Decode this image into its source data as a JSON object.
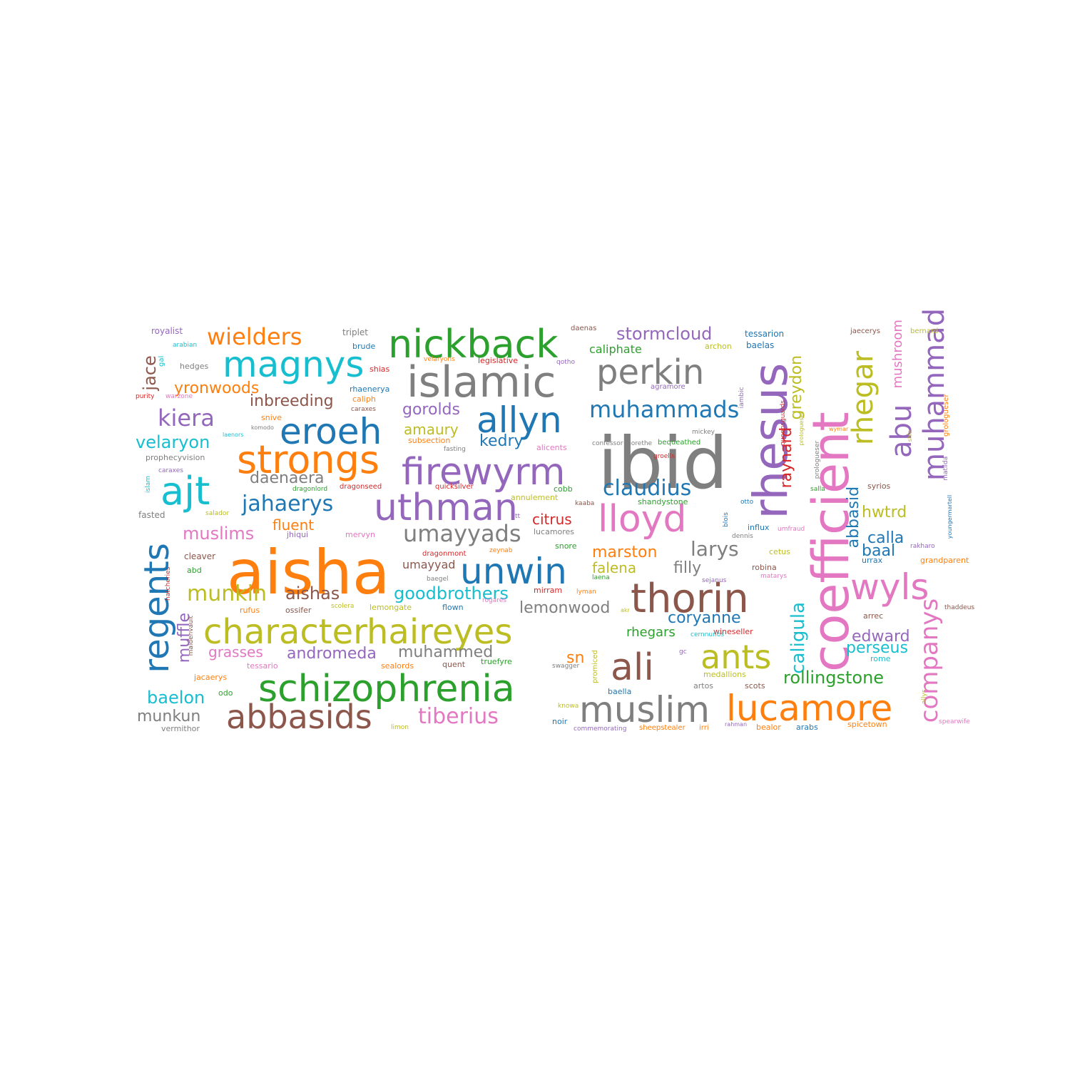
{
  "palette": {
    "blue": "#1f77b4",
    "orange": "#ff7f0e",
    "green": "#2ca02c",
    "red": "#d62728",
    "purple": "#9467bd",
    "brown": "#8c564b",
    "pink": "#e377c2",
    "gray": "#7f7f7f",
    "olive": "#bcbd22",
    "cyan": "#17becf"
  },
  "words": [
    {
      "text": "aisha",
      "color": "orange"
    },
    {
      "text": "ibid",
      "color": "gray"
    },
    {
      "text": "coefficient",
      "color": "pink"
    },
    {
      "text": "islamic",
      "color": "gray"
    },
    {
      "text": "characterhaireyes",
      "color": "olive"
    },
    {
      "text": "schizophrenia",
      "color": "green"
    },
    {
      "text": "nickback",
      "color": "green"
    },
    {
      "text": "rhesus",
      "color": "purple"
    },
    {
      "text": "strongs",
      "color": "orange"
    },
    {
      "text": "firewyrm",
      "color": "purple"
    },
    {
      "text": "uthman",
      "color": "purple"
    },
    {
      "text": "thorin",
      "color": "brown"
    },
    {
      "text": "muslim",
      "color": "gray"
    },
    {
      "text": "lucamore",
      "color": "orange"
    },
    {
      "text": "magnys",
      "color": "cyan"
    },
    {
      "text": "eroeh",
      "color": "blue"
    },
    {
      "text": "perkin",
      "color": "gray"
    },
    {
      "text": "allyn",
      "color": "blue"
    },
    {
      "text": "lloyd",
      "color": "pink"
    },
    {
      "text": "ajt",
      "color": "cyan"
    },
    {
      "text": "unwin",
      "color": "blue"
    },
    {
      "text": "regents",
      "color": "blue"
    },
    {
      "text": "abbasids",
      "color": "brown"
    },
    {
      "text": "ali",
      "color": "brown"
    },
    {
      "text": "wyls",
      "color": "pink"
    },
    {
      "text": "ants",
      "color": "olive"
    },
    {
      "text": "muhammad",
      "color": "purple"
    },
    {
      "text": "rhegar",
      "color": "olive"
    },
    {
      "text": "abu",
      "color": "purple"
    },
    {
      "text": "companys",
      "color": "pink"
    },
    {
      "text": "wielders",
      "color": "orange"
    },
    {
      "text": "muhammads",
      "color": "blue"
    },
    {
      "text": "umayyads",
      "color": "gray"
    },
    {
      "text": "tiberius",
      "color": "pink"
    },
    {
      "text": "claudius",
      "color": "blue"
    },
    {
      "text": "jahaerys",
      "color": "blue"
    },
    {
      "text": "kiera",
      "color": "purple"
    },
    {
      "text": "stormcloud",
      "color": "purple"
    },
    {
      "text": "goodbrothers",
      "color": "cyan"
    },
    {
      "text": "larys",
      "color": "gray"
    },
    {
      "text": "munkin",
      "color": "olive"
    },
    {
      "text": "caligula",
      "color": "cyan"
    },
    {
      "text": "rollingstone",
      "color": "green"
    },
    {
      "text": "muslims",
      "color": "pink"
    },
    {
      "text": "daenaera",
      "color": "gray"
    },
    {
      "text": "inbreeding",
      "color": "brown"
    },
    {
      "text": "velaryon",
      "color": "cyan"
    },
    {
      "text": "gorolds",
      "color": "purple"
    },
    {
      "text": "lemonwood",
      "color": "gray"
    },
    {
      "text": "muhammed",
      "color": "gray"
    },
    {
      "text": "aishas",
      "color": "brown"
    },
    {
      "text": "andromeda",
      "color": "purple"
    },
    {
      "text": "coryanne",
      "color": "blue"
    },
    {
      "text": "marston",
      "color": "orange"
    },
    {
      "text": "baelon",
      "color": "cyan"
    },
    {
      "text": "muffle",
      "color": "purple"
    },
    {
      "text": "jace",
      "color": "brown"
    },
    {
      "text": "yronwoods",
      "color": "orange"
    },
    {
      "text": "edward",
      "color": "purple"
    },
    {
      "text": "perseus",
      "color": "cyan"
    },
    {
      "text": "abbasid",
      "color": "blue"
    },
    {
      "text": "greydon",
      "color": "olive"
    },
    {
      "text": "raynard",
      "color": "red"
    },
    {
      "text": "mushroom",
      "color": "pink"
    },
    {
      "text": "kedry",
      "color": "blue"
    },
    {
      "text": "amaury",
      "color": "olive"
    },
    {
      "text": "fluent",
      "color": "orange"
    },
    {
      "text": "filly",
      "color": "gray"
    },
    {
      "text": "falena",
      "color": "olive"
    },
    {
      "text": "citrus",
      "color": "red"
    },
    {
      "text": "calla",
      "color": "blue"
    },
    {
      "text": "baal",
      "color": "blue"
    },
    {
      "text": "hwtrd",
      "color": "olive"
    },
    {
      "text": "munkun",
      "color": "gray"
    },
    {
      "text": "grasses",
      "color": "pink"
    },
    {
      "text": "rhegars",
      "color": "green"
    },
    {
      "text": "sn",
      "color": "orange"
    },
    {
      "text": "umayyad",
      "color": "brown"
    },
    {
      "text": "caliphate",
      "color": "green"
    },
    {
      "text": "royalist",
      "color": "purple"
    },
    {
      "text": "triplet",
      "color": "gray"
    },
    {
      "text": "daenas",
      "color": "brown"
    },
    {
      "text": "tessarion",
      "color": "blue"
    },
    {
      "text": "jaecerys",
      "color": "brown"
    },
    {
      "text": "bernard",
      "color": "olive"
    },
    {
      "text": "arabian",
      "color": "cyan"
    },
    {
      "text": "brude",
      "color": "blue"
    },
    {
      "text": "archon",
      "color": "olive"
    },
    {
      "text": "baelas",
      "color": "blue"
    },
    {
      "text": "hedges",
      "color": "gray"
    },
    {
      "text": "shias",
      "color": "red"
    },
    {
      "text": "velaryons",
      "color": "orange"
    },
    {
      "text": "legislative",
      "color": "red"
    },
    {
      "text": "qotho",
      "color": "purple"
    },
    {
      "text": "gal",
      "color": "cyan"
    },
    {
      "text": "purity",
      "color": "red"
    },
    {
      "text": "warzone",
      "color": "pink"
    },
    {
      "text": "rhaenerya",
      "color": "blue"
    },
    {
      "text": "caliph",
      "color": "orange"
    },
    {
      "text": "caraxes",
      "color": "brown"
    },
    {
      "text": "agramore",
      "color": "purple"
    },
    {
      "text": "snive",
      "color": "orange"
    },
    {
      "text": "komodo",
      "color": "gray"
    },
    {
      "text": "laenors",
      "color": "cyan"
    },
    {
      "text": "subsection",
      "color": "orange"
    },
    {
      "text": "confessor",
      "color": "gray"
    },
    {
      "text": "morethe",
      "color": "gray"
    },
    {
      "text": "bequeathed",
      "color": "green"
    },
    {
      "text": "mickey",
      "color": "gray"
    },
    {
      "text": "fasting",
      "color": "gray"
    },
    {
      "text": "alicents",
      "color": "pink"
    },
    {
      "text": "groells",
      "color": "red"
    },
    {
      "text": "prophecyvision",
      "color": "gray"
    },
    {
      "text": "islam",
      "color": "cyan"
    },
    {
      "text": "caraxes",
      "color": "purple"
    },
    {
      "text": "dragonlord",
      "color": "green"
    },
    {
      "text": "dragonseed",
      "color": "red"
    },
    {
      "text": "quicksilver",
      "color": "red"
    },
    {
      "text": "cobb",
      "color": "green"
    },
    {
      "text": "annulement",
      "color": "olive"
    },
    {
      "text": "kaaba",
      "color": "brown"
    },
    {
      "text": "shandystone",
      "color": "green"
    },
    {
      "text": "fasted",
      "color": "gray"
    },
    {
      "text": "salador",
      "color": "olive"
    },
    {
      "text": "tt",
      "color": "purple"
    },
    {
      "text": "lucamores",
      "color": "gray"
    },
    {
      "text": "jhiqui",
      "color": "purple"
    },
    {
      "text": "mervyn",
      "color": "pink"
    },
    {
      "text": "dragonmont",
      "color": "red"
    },
    {
      "text": "zeynab",
      "color": "orange"
    },
    {
      "text": "snore",
      "color": "green"
    },
    {
      "text": "cleaver",
      "color": "brown"
    },
    {
      "text": "abd",
      "color": "green"
    },
    {
      "text": "hatcheries",
      "color": "red"
    },
    {
      "text": "baegel",
      "color": "gray"
    },
    {
      "text": "mirram",
      "color": "red"
    },
    {
      "text": "lyman",
      "color": "orange"
    },
    {
      "text": "laena",
      "color": "green"
    },
    {
      "text": "rufus",
      "color": "orange"
    },
    {
      "text": "ossifer",
      "color": "brown"
    },
    {
      "text": "scolera",
      "color": "olive"
    },
    {
      "text": "lemongate",
      "color": "olive"
    },
    {
      "text": "flown",
      "color": "blue"
    },
    {
      "text": "rogares",
      "color": "pink"
    },
    {
      "text": "akr",
      "color": "olive"
    },
    {
      "text": "maidenvault",
      "color": "brown"
    },
    {
      "text": "tessario",
      "color": "pink"
    },
    {
      "text": "jacaerys",
      "color": "orange"
    },
    {
      "text": "sealords",
      "color": "orange"
    },
    {
      "text": "quent",
      "color": "brown"
    },
    {
      "text": "truefyre",
      "color": "green"
    },
    {
      "text": "swagger",
      "color": "gray"
    },
    {
      "text": "promiced",
      "color": "olive"
    },
    {
      "text": "odo",
      "color": "green"
    },
    {
      "text": "vermithor",
      "color": "gray"
    },
    {
      "text": "limon",
      "color": "olive"
    },
    {
      "text": "noir",
      "color": "blue"
    },
    {
      "text": "knowa",
      "color": "olive"
    },
    {
      "text": "commemorating",
      "color": "purple"
    },
    {
      "text": "sheepstealer",
      "color": "orange"
    },
    {
      "text": "irri",
      "color": "orange"
    },
    {
      "text": "rahman",
      "color": "purple"
    },
    {
      "text": "bealor",
      "color": "orange"
    },
    {
      "text": "arabs",
      "color": "blue"
    },
    {
      "text": "spicetown",
      "color": "orange"
    },
    {
      "text": "baella",
      "color": "blue"
    },
    {
      "text": "medallions",
      "color": "olive"
    },
    {
      "text": "artos",
      "color": "gray"
    },
    {
      "text": "scots",
      "color": "brown"
    },
    {
      "text": "wineseller",
      "color": "red"
    },
    {
      "text": "cernnunos",
      "color": "cyan"
    },
    {
      "text": "gc",
      "color": "purple"
    },
    {
      "text": "dennis",
      "color": "gray"
    },
    {
      "text": "influx",
      "color": "blue"
    },
    {
      "text": "blois",
      "color": "blue"
    },
    {
      "text": "otto",
      "color": "blue"
    },
    {
      "text": "cetus",
      "color": "olive"
    },
    {
      "text": "robina",
      "color": "brown"
    },
    {
      "text": "matarys",
      "color": "pink"
    },
    {
      "text": "sejanus",
      "color": "purple"
    },
    {
      "text": "umfraud",
      "color": "pink"
    },
    {
      "text": "salla",
      "color": "green"
    },
    {
      "text": "syrios",
      "color": "brown"
    },
    {
      "text": "wymar",
      "color": "orange"
    },
    {
      "text": "queensguards",
      "color": "red"
    },
    {
      "text": "iambic",
      "color": "purple"
    },
    {
      "text": "prologueser",
      "color": "olive"
    },
    {
      "text": "prologueser",
      "color": "gray"
    },
    {
      "text": "grologueser",
      "color": "orange"
    },
    {
      "text": "matilda",
      "color": "purple"
    },
    {
      "text": "youngermartell",
      "color": "blue"
    },
    {
      "text": "shia",
      "color": "olive"
    },
    {
      "text": "rakharo",
      "color": "purple"
    },
    {
      "text": "grandparent",
      "color": "orange"
    },
    {
      "text": "urrax",
      "color": "blue"
    },
    {
      "text": "arrec",
      "color": "brown"
    },
    {
      "text": "thaddeus",
      "color": "brown"
    },
    {
      "text": "rome",
      "color": "cyan"
    },
    {
      "text": "allys",
      "color": "olive"
    },
    {
      "text": "spearwife",
      "color": "pink"
    },
    {
      "text": "magma",
      "color": "cyan"
    }
  ]
}
